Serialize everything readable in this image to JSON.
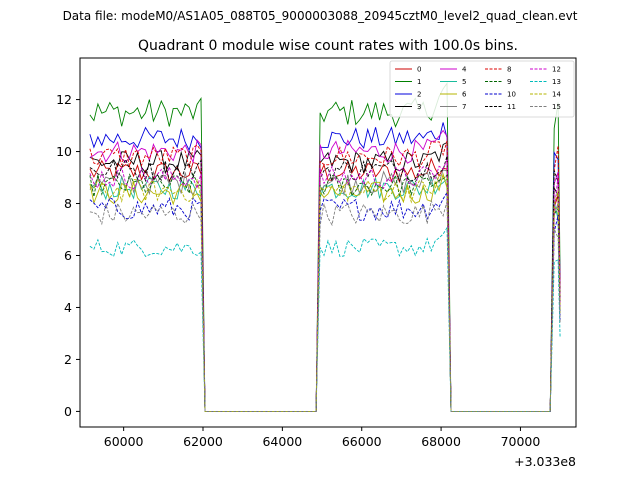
{
  "chart_data": {
    "type": "line",
    "suptitle": "Data file: modeM0/AS1A05_088T05_9000003088_20945cztM0_level2_quad_clean.evt",
    "title": "Quadrant 0 module wise count rates with 100.0s bins.",
    "xlabel": "",
    "ylabel": "",
    "x_offset_label": "+3.033e8",
    "xlim": [
      58900,
      71400
    ],
    "ylim": [
      -0.6,
      13.6
    ],
    "x_ticks": [
      60000,
      62000,
      64000,
      66000,
      68000,
      70000
    ],
    "x_tick_labels": [
      "60000",
      "62000",
      "64000",
      "66000",
      "68000",
      "70000"
    ],
    "y_ticks": [
      0,
      2,
      4,
      6,
      8,
      10,
      12
    ],
    "y_tick_labels": [
      "0",
      "2",
      "4",
      "6",
      "8",
      "10",
      "12"
    ],
    "grid": false,
    "legend_position": "top-right",
    "segments": [
      {
        "x_start": 59150,
        "x_end": 61950
      },
      {
        "x_start": 64950,
        "x_end": 68150
      },
      {
        "x_start": 70850,
        "x_end": 70950
      }
    ],
    "gaps": [
      {
        "x_start": 62050,
        "x_end": 64850
      },
      {
        "x_start": 68250,
        "x_end": 70750
      }
    ],
    "series": [
      {
        "name": "0",
        "color": "#cc0000",
        "style": "solid",
        "level": 9.2
      },
      {
        "name": "1",
        "color": "#008000",
        "style": "solid",
        "level": 11.5
      },
      {
        "name": "2",
        "color": "#0000dd",
        "style": "solid",
        "level": 10.5
      },
      {
        "name": "3",
        "color": "#000000",
        "style": "solid",
        "level": 9.6
      },
      {
        "name": "4",
        "color": "#cc00cc",
        "style": "solid",
        "level": 10.0
      },
      {
        "name": "5",
        "color": "#1abc9c",
        "style": "solid",
        "level": 8.6
      },
      {
        "name": "6",
        "color": "#b5b500",
        "style": "solid",
        "level": 8.4
      },
      {
        "name": "7",
        "color": "#808080",
        "style": "solid",
        "level": 8.8
      },
      {
        "name": "8",
        "color": "#dd0000",
        "style": "dashed",
        "level": 9.8
      },
      {
        "name": "9",
        "color": "#006400",
        "style": "dashed",
        "level": 8.7
      },
      {
        "name": "10",
        "color": "#0000cc",
        "style": "dashed",
        "level": 7.8
      },
      {
        "name": "11",
        "color": "#000000",
        "style": "dashed",
        "level": 9.3
      },
      {
        "name": "12",
        "color": "#cc00cc",
        "style": "dashed",
        "level": 9.0
      },
      {
        "name": "13",
        "color": "#00bbbb",
        "style": "dashed",
        "level": 6.3
      },
      {
        "name": "14",
        "color": "#b5b500",
        "style": "dashed",
        "level": 8.5
      },
      {
        "name": "15",
        "color": "#808080",
        "style": "dashed",
        "level": 7.6
      }
    ]
  }
}
